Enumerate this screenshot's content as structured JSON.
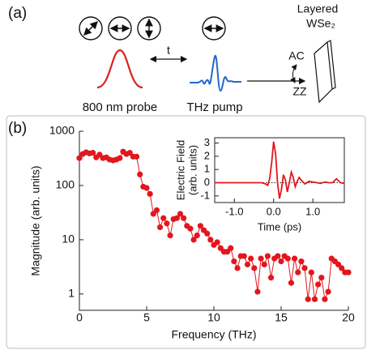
{
  "diagram": {
    "panel_a": "(a)",
    "panel_b": "(b)",
    "delay": "t",
    "probe": "800 nm probe",
    "pump": "THz pump",
    "sample_line1": "Layered",
    "sample_line2": "WSe₂",
    "axis_ac": "AC",
    "axis_zz": "ZZ"
  },
  "chart_data": [
    {
      "type": "line",
      "markers": true,
      "log_y": true,
      "color": "#e3161d",
      "xlabel": "Frequency (THz)",
      "ylabel": "Magnitude (arb. units)",
      "x": [
        0,
        0.25,
        0.5,
        0.75,
        1,
        1.25,
        1.5,
        1.75,
        2,
        2.25,
        2.5,
        2.75,
        3,
        3.25,
        3.5,
        3.75,
        4,
        4.25,
        4.5,
        4.75,
        5,
        5.25,
        5.5,
        5.75,
        6,
        6.25,
        6.5,
        6.75,
        7,
        7.25,
        7.5,
        7.75,
        8,
        8.25,
        8.5,
        8.75,
        9,
        9.25,
        9.5,
        9.75,
        10,
        10.25,
        10.5,
        10.75,
        11,
        11.25,
        11.5,
        11.75,
        12,
        12.25,
        12.5,
        12.75,
        13,
        13.25,
        13.5,
        13.75,
        14,
        14.25,
        14.5,
        14.75,
        15,
        15.25,
        15.5,
        15.75,
        16,
        16.25,
        16.5,
        16.75,
        17,
        17.25,
        17.5,
        17.75,
        18,
        18.25,
        18.5,
        18.75,
        19,
        19.25,
        19.5,
        19.75,
        20
      ],
      "values": [
        320,
        380,
        410,
        390,
        400,
        330,
        370,
        320,
        330,
        300,
        290,
        300,
        320,
        420,
        380,
        400,
        340,
        340,
        160,
        95,
        90,
        70,
        30,
        35,
        17,
        25,
        20,
        12,
        24,
        25,
        30,
        25,
        18,
        16,
        10,
        12,
        18,
        15,
        13,
        10,
        8,
        9,
        7,
        6,
        6,
        7,
        4,
        3,
        5,
        5,
        3.5,
        4.5,
        3,
        1.1,
        4.5,
        3.5,
        5,
        2,
        4.5,
        5,
        4,
        5,
        4.5,
        1.6,
        4.5,
        2.5,
        4,
        3,
        0.8,
        2.5,
        0.8,
        1.5,
        2,
        0.8,
        1.1,
        4.5,
        4,
        3.5,
        3,
        2.5,
        2.5
      ],
      "xlim": [
        0,
        20
      ],
      "xticks": [
        0,
        5,
        10,
        15,
        20
      ],
      "ylim": [
        0.5,
        1000
      ],
      "yticks": [
        1,
        10,
        100,
        1000
      ]
    },
    {
      "type": "line",
      "markers": false,
      "log_y": false,
      "color": "#e3161d",
      "xlabel": "Time (ps)",
      "ylabel": [
        "Electric Field",
        "(arb. units)"
      ],
      "hline": 0,
      "x": [
        -1.5,
        -1.0,
        -0.5,
        -0.3,
        -0.2,
        -0.15,
        -0.1,
        -0.05,
        0,
        0.05,
        0.1,
        0.15,
        0.2,
        0.25,
        0.3,
        0.35,
        0.4,
        0.45,
        0.5,
        0.55,
        0.6,
        0.65,
        0.7,
        0.8,
        0.9,
        1.0,
        1.1,
        1.2,
        1.3,
        1.4,
        1.5,
        1.6,
        1.7,
        1.8
      ],
      "values": [
        0,
        0,
        0,
        0,
        -0.1,
        -0.2,
        0.3,
        1.5,
        3.1,
        2.2,
        0,
        -1.2,
        -0.5,
        0.6,
        0.2,
        -0.7,
        0,
        0.8,
        0.4,
        -0.3,
        0.1,
        0.4,
        0.2,
        -0.1,
        0.1,
        0.05,
        0,
        -0.05,
        0.05,
        0,
        0,
        0.3,
        0,
        -0.05
      ],
      "xlim": [
        -1.5,
        1.8
      ],
      "xticks": [
        {
          "value": -1,
          "label": "-1.0"
        },
        {
          "value": 0,
          "label": "0.0"
        },
        {
          "value": 1,
          "label": "1.0"
        }
      ],
      "ylim": [
        -1.5,
        3.4
      ],
      "yticks": [
        -1,
        0,
        1,
        2,
        3
      ]
    }
  ]
}
